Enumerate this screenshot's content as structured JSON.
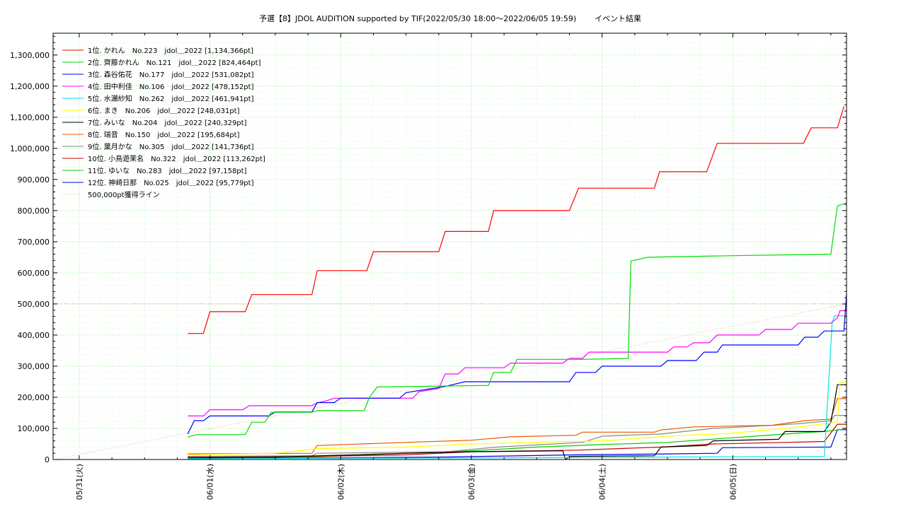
{
  "chart_data": {
    "type": "line",
    "title": "予選【8】JDOL AUDITION supported by TIF(2022/05/30 18:00～2022/06/05 19:59)",
    "subtitle": "イベント結果",
    "xlabel": "",
    "ylabel": "",
    "x_ticks": [
      "05/31(火)",
      "06/01(水)",
      "06/02(木)",
      "06/03(金)",
      "06/04(土)",
      "06/05(日)"
    ],
    "x_range_days": [
      -0.2,
      5.87
    ],
    "ylim": [
      0,
      1370000
    ],
    "y_ticks": [
      0,
      100000,
      200000,
      300000,
      400000,
      500000,
      600000,
      700000,
      800000,
      900000,
      1000000,
      1100000,
      1200000,
      1300000
    ],
    "y_tick_labels": [
      "0",
      "100,000",
      "200,000",
      "300,000",
      "400,000",
      "500,000",
      "600,000",
      "700,000",
      "800,000",
      "900,000",
      "1,000,000",
      "1,100,000",
      "1,200,000",
      "1,300,000"
    ],
    "grid": true,
    "legend_position": "top-left",
    "reference_line": {
      "name": "500,000pt獲得ライン",
      "value": 500000,
      "color": "#ff9999"
    },
    "series": [
      {
        "name": "1位. かれん　No.223　jdol＿2022 [1,134,366pt]",
        "color": "#ff0000",
        "points": [
          [
            0.83,
            405000
          ],
          [
            0.95,
            405000
          ],
          [
            1.0,
            475000
          ],
          [
            1.27,
            475000
          ],
          [
            1.32,
            530000
          ],
          [
            1.78,
            530000
          ],
          [
            1.82,
            607000
          ],
          [
            2.2,
            607000
          ],
          [
            2.25,
            668000
          ],
          [
            2.75,
            668000
          ],
          [
            2.8,
            733000
          ],
          [
            3.13,
            733000
          ],
          [
            3.17,
            800000
          ],
          [
            3.75,
            800000
          ],
          [
            3.82,
            872000
          ],
          [
            4.4,
            872000
          ],
          [
            4.44,
            925000
          ],
          [
            4.8,
            925000
          ],
          [
            4.88,
            1016000
          ],
          [
            5.54,
            1016000
          ],
          [
            5.6,
            1066000
          ],
          [
            5.8,
            1066000
          ],
          [
            5.85,
            1134366
          ]
        ]
      },
      {
        "name": "2位. 齊藤かれん　No.121　jdol＿2022 [824,464pt]",
        "color": "#00dd00",
        "points": [
          [
            0.83,
            72000
          ],
          [
            0.9,
            80000
          ],
          [
            1.27,
            80000
          ],
          [
            1.32,
            120000
          ],
          [
            1.42,
            120000
          ],
          [
            1.47,
            152000
          ],
          [
            1.78,
            152000
          ],
          [
            1.82,
            157000
          ],
          [
            2.18,
            157000
          ],
          [
            2.22,
            200000
          ],
          [
            2.28,
            233000
          ],
          [
            3.13,
            238000
          ],
          [
            3.17,
            280000
          ],
          [
            3.3,
            280000
          ],
          [
            3.35,
            322000
          ],
          [
            3.85,
            322000
          ],
          [
            4.2,
            325000
          ],
          [
            4.22,
            638000
          ],
          [
            4.35,
            650000
          ],
          [
            5.0,
            655000
          ],
          [
            5.75,
            660000
          ],
          [
            5.8,
            815000
          ],
          [
            5.87,
            824464
          ]
        ]
      },
      {
        "name": "3位. 森谷佑花　No.177　jdol＿2022 [531,082pt]",
        "color": "#0000ff",
        "points": [
          [
            0.83,
            82000
          ],
          [
            0.88,
            125000
          ],
          [
            0.95,
            125000
          ],
          [
            1.0,
            140000
          ],
          [
            1.45,
            140000
          ],
          [
            1.5,
            153000
          ],
          [
            1.78,
            153000
          ],
          [
            1.82,
            183000
          ],
          [
            1.95,
            183000
          ],
          [
            2.0,
            197000
          ],
          [
            2.45,
            197000
          ],
          [
            2.5,
            215000
          ],
          [
            2.8,
            235000
          ],
          [
            2.95,
            250000
          ],
          [
            3.75,
            250000
          ],
          [
            3.8,
            280000
          ],
          [
            3.95,
            280000
          ],
          [
            4.0,
            300000
          ],
          [
            4.45,
            300000
          ],
          [
            4.5,
            318000
          ],
          [
            4.72,
            318000
          ],
          [
            4.78,
            345000
          ],
          [
            4.88,
            345000
          ],
          [
            4.92,
            368000
          ],
          [
            5.5,
            368000
          ],
          [
            5.55,
            393000
          ],
          [
            5.65,
            393000
          ],
          [
            5.7,
            413000
          ],
          [
            5.85,
            413000
          ],
          [
            5.87,
            531082
          ]
        ]
      },
      {
        "name": "4位. 田中利佳　No.106　jdol＿2022 [478,152pt]",
        "color": "#ff00ff",
        "points": [
          [
            0.83,
            140000
          ],
          [
            0.95,
            140000
          ],
          [
            1.0,
            160000
          ],
          [
            1.25,
            160000
          ],
          [
            1.3,
            173000
          ],
          [
            1.78,
            173000
          ],
          [
            1.82,
            182000
          ],
          [
            1.9,
            190000
          ],
          [
            1.95,
            197000
          ],
          [
            2.55,
            197000
          ],
          [
            2.6,
            218000
          ],
          [
            2.75,
            228000
          ],
          [
            2.8,
            275000
          ],
          [
            2.9,
            275000
          ],
          [
            2.95,
            295000
          ],
          [
            3.25,
            295000
          ],
          [
            3.3,
            310000
          ],
          [
            3.7,
            310000
          ],
          [
            3.75,
            325000
          ],
          [
            3.85,
            325000
          ],
          [
            3.9,
            345000
          ],
          [
            4.5,
            345000
          ],
          [
            4.55,
            362000
          ],
          [
            4.65,
            362000
          ],
          [
            4.7,
            375000
          ],
          [
            4.82,
            375000
          ],
          [
            4.88,
            400000
          ],
          [
            5.2,
            400000
          ],
          [
            5.25,
            418000
          ],
          [
            5.45,
            418000
          ],
          [
            5.5,
            438000
          ],
          [
            5.75,
            438000
          ],
          [
            5.8,
            455000
          ],
          [
            5.82,
            478152
          ],
          [
            5.87,
            478152
          ]
        ]
      },
      {
        "name": "5位. 水瀬紗知　No.262　jdol＿2022 [461,941pt]",
        "color": "#00e5e5",
        "points": [
          [
            0.83,
            3000
          ],
          [
            3.0,
            5000
          ],
          [
            4.5,
            8000
          ],
          [
            5.7,
            10000
          ],
          [
            5.72,
            150000
          ],
          [
            5.76,
            440000
          ],
          [
            5.78,
            461941
          ],
          [
            5.87,
            461941
          ]
        ]
      },
      {
        "name": "6位. まき　No.206　jdol＿2022 [248,031pt]",
        "color": "#ffff00",
        "points": [
          [
            0.83,
            15000
          ],
          [
            1.5,
            20000
          ],
          [
            1.82,
            35000
          ],
          [
            2.5,
            40000
          ],
          [
            3.0,
            50000
          ],
          [
            3.5,
            55000
          ],
          [
            4.0,
            60000
          ],
          [
            4.5,
            75000
          ],
          [
            5.0,
            85000
          ],
          [
            5.4,
            100000
          ],
          [
            5.8,
            120000
          ],
          [
            5.82,
            248031
          ],
          [
            5.87,
            248031
          ]
        ]
      },
      {
        "name": "7位. みいな　No.204　jdol＿2022 [240,329pt]",
        "color": "#000000",
        "points": [
          [
            0.83,
            5000
          ],
          [
            1.5,
            8000
          ],
          [
            2.5,
            20000
          ],
          [
            3.0,
            25000
          ],
          [
            3.7,
            28000
          ],
          [
            3.72,
            0
          ],
          [
            3.75,
            10000
          ],
          [
            4.4,
            12000
          ],
          [
            4.45,
            40000
          ],
          [
            4.8,
            45000
          ],
          [
            4.85,
            60000
          ],
          [
            5.35,
            65000
          ],
          [
            5.4,
            90000
          ],
          [
            5.7,
            90000
          ],
          [
            5.75,
            120000
          ],
          [
            5.78,
            190000
          ],
          [
            5.8,
            240329
          ],
          [
            5.87,
            240329
          ]
        ]
      },
      {
        "name": "8位. 瑞音　No.150　jdol＿2022 [195,684pt]",
        "color": "#ee5500",
        "points": [
          [
            0.83,
            18000
          ],
          [
            1.78,
            20000
          ],
          [
            1.82,
            45000
          ],
          [
            2.5,
            55000
          ],
          [
            3.0,
            62000
          ],
          [
            3.3,
            73000
          ],
          [
            3.8,
            78000
          ],
          [
            3.85,
            88000
          ],
          [
            4.4,
            88000
          ],
          [
            4.45,
            95000
          ],
          [
            4.7,
            105000
          ],
          [
            5.3,
            110000
          ],
          [
            5.55,
            125000
          ],
          [
            5.75,
            130000
          ],
          [
            5.8,
            195684
          ],
          [
            5.87,
            195684
          ]
        ]
      },
      {
        "name": "9位. 葉月かな　No.305　jdol＿2022 [141,736pt]",
        "color": "#888888",
        "points": [
          [
            0.83,
            10000
          ],
          [
            1.78,
            12000
          ],
          [
            1.82,
            20000
          ],
          [
            2.8,
            25000
          ],
          [
            3.2,
            40000
          ],
          [
            3.85,
            55000
          ],
          [
            4.0,
            75000
          ],
          [
            4.45,
            82000
          ],
          [
            4.85,
            100000
          ],
          [
            5.3,
            110000
          ],
          [
            5.5,
            115000
          ],
          [
            5.75,
            125000
          ],
          [
            5.78,
            141736
          ],
          [
            5.87,
            141736
          ]
        ]
      },
      {
        "name": "10位. 小鳥遊茉名　No.322　jdol＿2022 [113,262pt]",
        "color": "#cc0000",
        "points": [
          [
            0.83,
            8000
          ],
          [
            1.78,
            10000
          ],
          [
            2.5,
            15000
          ],
          [
            3.0,
            25000
          ],
          [
            3.8,
            30000
          ],
          [
            4.45,
            40000
          ],
          [
            4.85,
            50000
          ],
          [
            5.4,
            55000
          ],
          [
            5.7,
            58000
          ],
          [
            5.8,
            113262
          ],
          [
            5.87,
            113262
          ]
        ]
      },
      {
        "name": "11位. ゆいな　No.283　jdol＿2022 [97,158pt]",
        "color": "#00cc00",
        "points": [
          [
            0.83,
            5000
          ],
          [
            1.78,
            8000
          ],
          [
            2.5,
            20000
          ],
          [
            3.0,
            28000
          ],
          [
            3.5,
            40000
          ],
          [
            4.0,
            48000
          ],
          [
            4.5,
            55000
          ],
          [
            5.0,
            70000
          ],
          [
            5.5,
            85000
          ],
          [
            5.7,
            90000
          ],
          [
            5.85,
            97158
          ],
          [
            5.87,
            97158
          ]
        ]
      },
      {
        "name": "12位. 神崎日那　No.025　jdol＿2022 [95,779pt]",
        "color": "#0000dd",
        "points": [
          [
            0.83,
            3000
          ],
          [
            1.78,
            5000
          ],
          [
            2.8,
            8000
          ],
          [
            3.8,
            15000
          ],
          [
            4.5,
            18000
          ],
          [
            4.88,
            20000
          ],
          [
            4.92,
            38000
          ],
          [
            5.75,
            40000
          ],
          [
            5.8,
            95779
          ],
          [
            5.87,
            95779
          ]
        ]
      }
    ]
  }
}
